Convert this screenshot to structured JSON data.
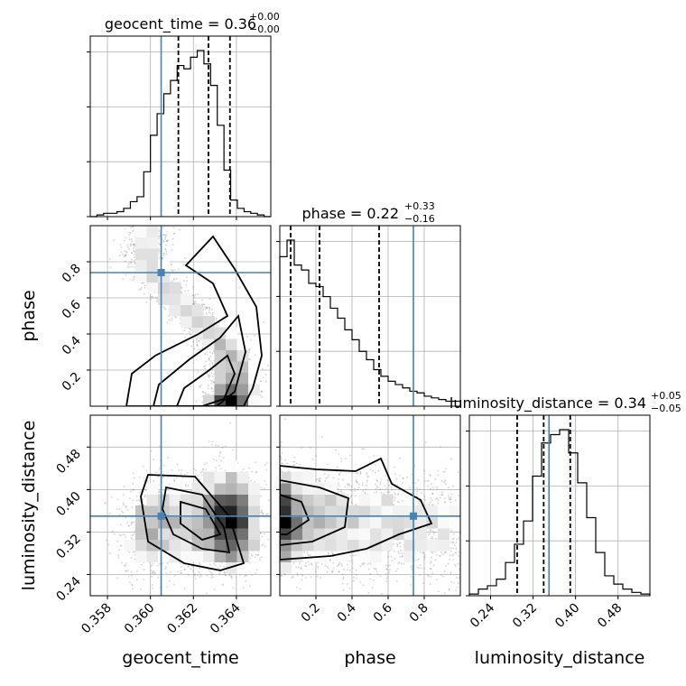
{
  "colors": {
    "truth": "#4682b4",
    "hist": "#000000",
    "grid": "#b0b0b0",
    "scatter": "#808080"
  },
  "chart_data": {
    "type": "corner",
    "grid": true,
    "parameters": [
      {
        "name": "geocent_time",
        "axis_label": "geocent_time",
        "range": [
          0.3572,
          0.3656
        ],
        "ticks": [
          0.358,
          0.36,
          0.362,
          0.364
        ],
        "tick_labels": [
          "0.358",
          "0.360",
          "0.362",
          "0.364"
        ],
        "truth": 0.3605,
        "title": {
          "prefix": "geocent_time = 0.36",
          "plus": "+0.00",
          "minus": "−0.00"
        },
        "quantiles": [
          0.3613,
          0.3627,
          0.3637
        ],
        "hist": [
          0.0,
          0.01,
          0.02,
          0.02,
          0.03,
          0.05,
          0.09,
          0.12,
          0.27,
          0.49,
          0.62,
          0.74,
          0.82,
          0.91,
          0.89,
          0.96,
          1.0,
          0.92,
          0.79,
          0.55,
          0.28,
          0.1,
          0.05,
          0.03,
          0.02,
          0.01,
          0.0
        ],
        "hist_yticks": [
          0.0,
          0.32,
          0.64,
          0.96
        ]
      },
      {
        "name": "phase",
        "axis_label": "phase",
        "range": [
          0.0,
          1.0
        ],
        "ticks": [
          0.2,
          0.4,
          0.6,
          0.8
        ],
        "tick_labels": [
          "0.2",
          "0.4",
          "0.6",
          "0.8"
        ],
        "truth": 0.74,
        "title": {
          "prefix": "phase = 0.22",
          "plus": "+0.33",
          "minus": "−0.16"
        },
        "quantiles": [
          0.06,
          0.22,
          0.55
        ],
        "hist": [
          0.9,
          1.0,
          0.85,
          0.82,
          0.74,
          0.72,
          0.66,
          0.59,
          0.53,
          0.46,
          0.4,
          0.33,
          0.28,
          0.22,
          0.18,
          0.15,
          0.13,
          0.11,
          0.09,
          0.08,
          0.06,
          0.05,
          0.04,
          0.03,
          0.03
        ],
        "hist_yticks": [
          0.0,
          0.32,
          0.64,
          0.96
        ]
      },
      {
        "name": "luminosity_distance",
        "axis_label": "luminosity_distance",
        "range": [
          0.2,
          0.54
        ],
        "ticks": [
          0.24,
          0.32,
          0.4,
          0.48
        ],
        "tick_labels": [
          "0.24",
          "0.32",
          "0.40",
          "0.48"
        ],
        "truth": 0.35,
        "title": {
          "prefix": "luminosity_distance = 0.34",
          "plus": "+0.05",
          "minus": "−0.05"
        },
        "quantiles": [
          0.29,
          0.34,
          0.39
        ],
        "hist": [
          0.01,
          0.04,
          0.06,
          0.1,
          0.2,
          0.31,
          0.45,
          0.72,
          0.92,
          0.97,
          1.0,
          0.86,
          0.68,
          0.47,
          0.26,
          0.12,
          0.07,
          0.04,
          0.02,
          0.01
        ],
        "hist_yticks": [
          0.0,
          0.32,
          0.64,
          0.96
        ]
      }
    ],
    "pairs": [
      {
        "x": "geocent_time",
        "y": "phase"
      },
      {
        "x": "geocent_time",
        "y": "luminosity_distance"
      },
      {
        "x": "phase",
        "y": "luminosity_distance"
      }
    ]
  }
}
